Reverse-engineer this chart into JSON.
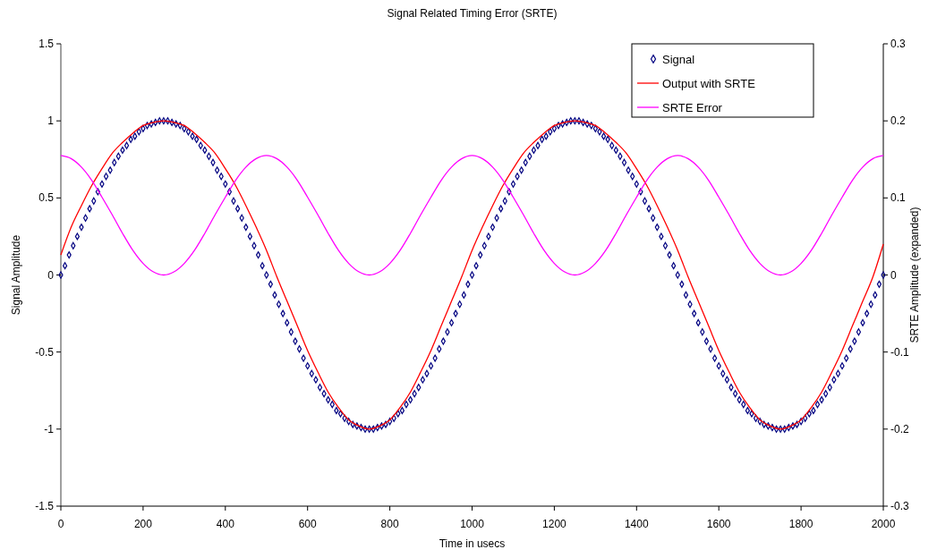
{
  "chart_data": {
    "type": "line",
    "title": "Signal Related Timing Error (SRTE)",
    "xlabel": "Time in usecs",
    "ylabel": "Signal Amplitude",
    "y2label": "SRTE Amplitude (expanded)",
    "xlim": [
      0,
      2000
    ],
    "xticks": [
      0,
      200,
      400,
      600,
      800,
      1000,
      1200,
      1400,
      1600,
      1800,
      2000
    ],
    "ylim": [
      -1.5,
      1.5
    ],
    "yticks": [
      -1.5,
      -1,
      -0.5,
      0,
      0.5,
      1,
      1.5
    ],
    "y2lim": [
      -0.3,
      0.3
    ],
    "y2ticks": [
      -0.3,
      -0.2,
      -0.1,
      0,
      0.1,
      0.2,
      0.3
    ],
    "grid": false,
    "legend": "top right",
    "series": [
      {
        "name": "Signal",
        "type": "scatter",
        "marker": "diamond",
        "color": "#000080",
        "x": [
          0,
          10,
          20,
          30,
          40,
          50,
          60,
          70,
          80,
          90,
          100,
          110,
          120,
          130,
          140,
          150,
          160,
          170,
          180,
          190,
          200,
          210,
          220,
          230,
          240,
          250,
          260,
          270,
          280,
          290,
          300,
          310,
          320,
          330,
          340,
          350,
          360,
          370,
          380,
          390,
          400,
          410,
          420,
          430,
          440,
          450,
          460,
          470,
          480,
          490,
          500,
          510,
          520,
          530,
          540,
          550,
          560,
          570,
          580,
          590,
          600,
          610,
          620,
          630,
          640,
          650,
          660,
          670,
          680,
          690,
          700,
          710,
          720,
          730,
          740,
          750,
          760,
          770,
          780,
          790,
          800,
          810,
          820,
          830,
          840,
          850,
          860,
          870,
          880,
          890,
          900,
          910,
          920,
          930,
          940,
          950,
          960,
          970,
          980,
          990,
          1000,
          1010,
          1020,
          1030,
          1040,
          1050,
          1060,
          1070,
          1080,
          1090,
          1100,
          1110,
          1120,
          1130,
          1140,
          1150,
          1160,
          1170,
          1180,
          1190,
          1200,
          1210,
          1220,
          1230,
          1240,
          1250,
          1260,
          1270,
          1280,
          1290,
          1300,
          1310,
          1320,
          1330,
          1340,
          1350,
          1360,
          1370,
          1380,
          1390,
          1400,
          1410,
          1420,
          1430,
          1440,
          1450,
          1460,
          1470,
          1480,
          1490,
          1500,
          1510,
          1520,
          1530,
          1540,
          1550,
          1560,
          1570,
          1580,
          1590,
          1600,
          1610,
          1620,
          1630,
          1640,
          1650,
          1660,
          1670,
          1680,
          1690,
          1700,
          1710,
          1720,
          1730,
          1740,
          1750,
          1760,
          1770,
          1780,
          1790,
          1800,
          1810,
          1820,
          1830,
          1840,
          1850,
          1860,
          1870,
          1880,
          1890,
          1900,
          1910,
          1920,
          1930,
          1940,
          1950,
          1960,
          1970,
          1980,
          1990,
          2000
        ],
        "values": [
          0,
          0.06,
          0.13,
          0.19,
          0.25,
          0.31,
          0.37,
          0.43,
          0.48,
          0.54,
          0.59,
          0.64,
          0.68,
          0.73,
          0.77,
          0.81,
          0.84,
          0.88,
          0.9,
          0.93,
          0.95,
          0.97,
          0.98,
          0.99,
          1,
          1,
          1,
          0.99,
          0.98,
          0.97,
          0.95,
          0.93,
          0.9,
          0.88,
          0.84,
          0.81,
          0.77,
          0.73,
          0.68,
          0.64,
          0.59,
          0.54,
          0.48,
          0.43,
          0.37,
          0.31,
          0.25,
          0.19,
          0.13,
          0.06,
          0,
          -0.06,
          -0.13,
          -0.19,
          -0.25,
          -0.31,
          -0.37,
          -0.43,
          -0.48,
          -0.54,
          -0.59,
          -0.64,
          -0.68,
          -0.73,
          -0.77,
          -0.81,
          -0.84,
          -0.88,
          -0.9,
          -0.93,
          -0.95,
          -0.97,
          -0.98,
          -0.99,
          -1,
          -1,
          -1,
          -0.99,
          -0.98,
          -0.97,
          -0.95,
          -0.93,
          -0.9,
          -0.88,
          -0.84,
          -0.81,
          -0.77,
          -0.73,
          -0.68,
          -0.64,
          -0.59,
          -0.54,
          -0.48,
          -0.43,
          -0.37,
          -0.31,
          -0.25,
          -0.19,
          -0.13,
          -0.06,
          0,
          0.06,
          0.13,
          0.19,
          0.25,
          0.31,
          0.37,
          0.43,
          0.48,
          0.54,
          0.59,
          0.64,
          0.68,
          0.73,
          0.77,
          0.81,
          0.84,
          0.88,
          0.9,
          0.93,
          0.95,
          0.97,
          0.98,
          0.99,
          1,
          1,
          1,
          0.99,
          0.98,
          0.97,
          0.95,
          0.93,
          0.9,
          0.88,
          0.84,
          0.81,
          0.77,
          0.73,
          0.68,
          0.64,
          0.59,
          0.54,
          0.48,
          0.43,
          0.37,
          0.31,
          0.25,
          0.19,
          0.13,
          0.06,
          0,
          -0.06,
          -0.13,
          -0.19,
          -0.25,
          -0.31,
          -0.37,
          -0.43,
          -0.48,
          -0.54,
          -0.59,
          -0.64,
          -0.68,
          -0.73,
          -0.77,
          -0.81,
          -0.84,
          -0.88,
          -0.9,
          -0.93,
          -0.95,
          -0.97,
          -0.98,
          -0.99,
          -1,
          -1,
          -1,
          -0.99,
          -0.98,
          -0.97,
          -0.95,
          -0.93,
          -0.9,
          -0.88,
          -0.84,
          -0.81,
          -0.77,
          -0.73,
          -0.68,
          -0.64,
          -0.59,
          -0.54,
          -0.48,
          -0.43,
          -0.37,
          -0.31,
          -0.25,
          -0.19,
          -0.13,
          -0.06,
          0
        ]
      },
      {
        "name": "Output with SRTE",
        "color": "#ff0000",
        "x": [
          0,
          25,
          50,
          75,
          100,
          125,
          150,
          175,
          200,
          225,
          250,
          275,
          300,
          325,
          350,
          375,
          400,
          425,
          450,
          475,
          500,
          525,
          550,
          575,
          600,
          625,
          650,
          675,
          700,
          725,
          750,
          775,
          800,
          825,
          850,
          875,
          900,
          925,
          950,
          975,
          1000,
          1025,
          1050,
          1075,
          1100,
          1125,
          1150,
          1175,
          1200,
          1225,
          1250,
          1275,
          1300,
          1325,
          1350,
          1375,
          1400,
          1425,
          1450,
          1475,
          1500,
          1525,
          1550,
          1575,
          1600,
          1625,
          1650,
          1675,
          1700,
          1725,
          1750,
          1775,
          1800,
          1825,
          1850,
          1875,
          1900,
          1925,
          1950,
          1975,
          2000
        ],
        "values": [
          0.13,
          0.31,
          0.45,
          0.58,
          0.69,
          0.79,
          0.86,
          0.92,
          0.97,
          0.99,
          1,
          0.99,
          0.97,
          0.92,
          0.86,
          0.79,
          0.69,
          0.58,
          0.45,
          0.31,
          0.16,
          -0.01,
          -0.17,
          -0.33,
          -0.49,
          -0.63,
          -0.76,
          -0.86,
          -0.94,
          -0.98,
          -1,
          -0.98,
          -0.94,
          -0.86,
          -0.76,
          -0.63,
          -0.49,
          -0.33,
          -0.17,
          -0.01,
          0.16,
          0.31,
          0.45,
          0.58,
          0.69,
          0.79,
          0.86,
          0.92,
          0.97,
          0.99,
          1,
          0.99,
          0.97,
          0.92,
          0.86,
          0.79,
          0.69,
          0.58,
          0.45,
          0.31,
          0.16,
          -0.01,
          -0.17,
          -0.33,
          -0.49,
          -0.63,
          -0.76,
          -0.86,
          -0.94,
          -0.98,
          -1,
          -0.98,
          -0.94,
          -0.86,
          -0.76,
          -0.63,
          -0.49,
          -0.33,
          -0.17,
          -0.01,
          0.2
        ]
      },
      {
        "name": "SRTE Error",
        "axis": "y2",
        "color": "#ff00ff",
        "x": [
          0,
          25,
          50,
          75,
          100,
          125,
          150,
          175,
          200,
          225,
          250,
          275,
          300,
          325,
          350,
          375,
          400,
          425,
          450,
          475,
          500,
          525,
          550,
          575,
          600,
          625,
          650,
          675,
          700,
          725,
          750,
          775,
          800,
          825,
          850,
          875,
          900,
          925,
          950,
          975,
          1000,
          1025,
          1050,
          1075,
          1100,
          1125,
          1150,
          1175,
          1200,
          1225,
          1250,
          1275,
          1300,
          1325,
          1350,
          1375,
          1400,
          1425,
          1450,
          1475,
          1500,
          1525,
          1550,
          1575,
          1600,
          1625,
          1650,
          1675,
          1700,
          1725,
          1750,
          1775,
          1800,
          1825,
          1850,
          1875,
          1900,
          1925,
          1950,
          1975,
          2000
        ],
        "values": [
          0.155,
          0.151,
          0.14,
          0.123,
          0.101,
          0.078,
          0.054,
          0.032,
          0.015,
          0.004,
          0,
          0.004,
          0.015,
          0.032,
          0.054,
          0.078,
          0.101,
          0.123,
          0.14,
          0.151,
          0.155,
          0.151,
          0.14,
          0.123,
          0.101,
          0.078,
          0.054,
          0.032,
          0.015,
          0.004,
          0,
          0.004,
          0.015,
          0.032,
          0.054,
          0.078,
          0.101,
          0.123,
          0.14,
          0.151,
          0.155,
          0.151,
          0.14,
          0.123,
          0.101,
          0.078,
          0.054,
          0.032,
          0.015,
          0.004,
          0,
          0.004,
          0.015,
          0.032,
          0.054,
          0.078,
          0.101,
          0.123,
          0.14,
          0.151,
          0.155,
          0.151,
          0.14,
          0.123,
          0.101,
          0.078,
          0.054,
          0.032,
          0.015,
          0.004,
          0,
          0.004,
          0.015,
          0.032,
          0.054,
          0.078,
          0.101,
          0.123,
          0.14,
          0.151,
          0.155
        ]
      }
    ]
  }
}
